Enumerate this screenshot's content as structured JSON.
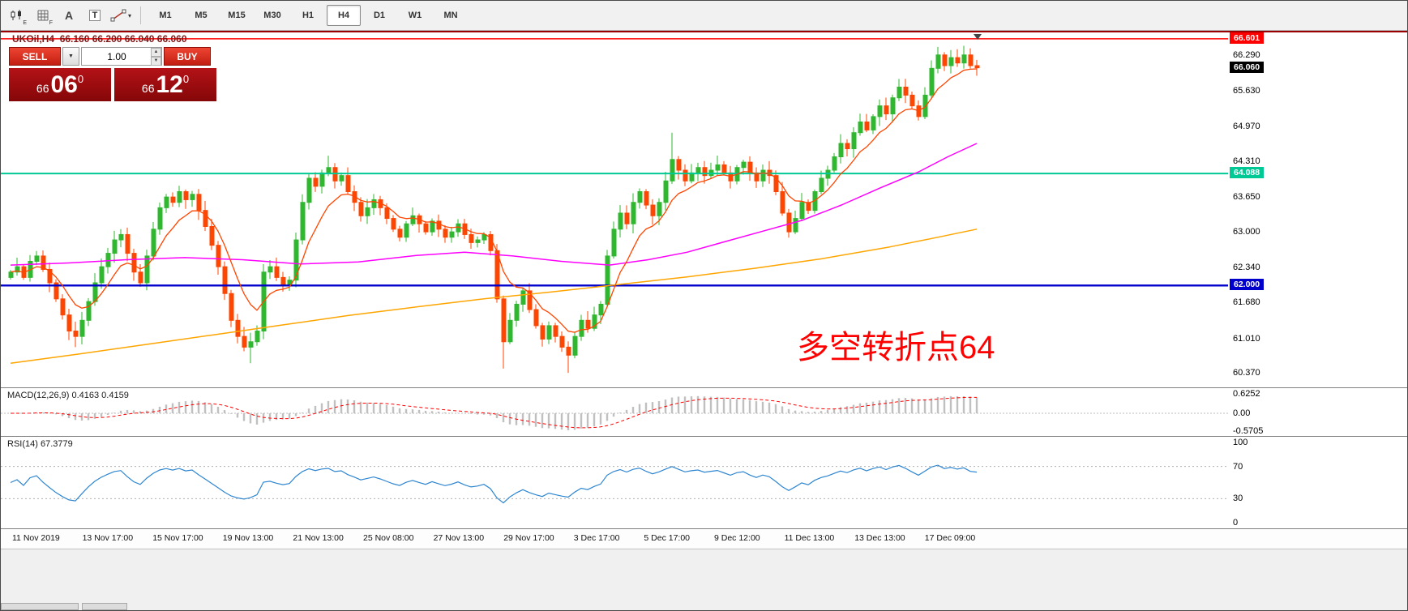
{
  "toolbar": {
    "tools": [
      {
        "name": "chart-window-icon",
        "sub": "E"
      },
      {
        "name": "indicator-grid-icon",
        "sub": "F"
      },
      {
        "name": "text-label-icon",
        "label": "A"
      },
      {
        "name": "text-template-icon",
        "label": "T"
      },
      {
        "name": "line-studies-icon",
        "caret": "▾"
      }
    ],
    "timeframes": [
      {
        "label": "M1",
        "active": false
      },
      {
        "label": "M5",
        "active": false
      },
      {
        "label": "M15",
        "active": false
      },
      {
        "label": "M30",
        "active": false
      },
      {
        "label": "H1",
        "active": false
      },
      {
        "label": "H4",
        "active": true
      },
      {
        "label": "D1",
        "active": false
      },
      {
        "label": "W1",
        "active": false
      },
      {
        "label": "MN",
        "active": false
      }
    ]
  },
  "chart": {
    "symbol": "UKOil,H4",
    "ohlc": "66.160 66.200 66.040 66.060",
    "trade_panel": {
      "sell_label": "SELL",
      "buy_label": "BUY",
      "volume": "1.00",
      "bid": {
        "prefix": "66",
        "big": "06",
        "sup": "0"
      },
      "ask": {
        "prefix": "66",
        "big": "12",
        "sup": "0"
      },
      "icons": {
        "dropdown": "▼",
        "spin_up": "▲",
        "spin_down": "▼"
      }
    },
    "annotation": {
      "text": "多空转折点64",
      "color": "#ff0000"
    }
  },
  "chart_data": {
    "type": "candlestick",
    "symbol": "UKOil",
    "timeframe": "H4",
    "title": "UKOil,H4 66.160 66.200 66.040 66.060",
    "colors": {
      "bull": "#2eb82e",
      "bear": "#ff4500",
      "ma_fast": "#ff4500",
      "ma_mid": "#ff00ff",
      "ma_slow": "#ffa500"
    },
    "price_axis": {
      "min": 60.1,
      "max": 66.72,
      "labels": [
        "66.290",
        "65.630",
        "64.970",
        "64.310",
        "63.650",
        "63.000",
        "62.340",
        "61.680",
        "61.010",
        "60.370"
      ]
    },
    "hlines": [
      {
        "price": 66.601,
        "label": "66.601",
        "color": "#ff0000",
        "width": 1.6
      },
      {
        "price": 64.088,
        "label": "64.088",
        "color": "#00c996",
        "width": 2.0
      },
      {
        "price": 62.0,
        "label": "62.000",
        "color": "#0000cc",
        "width": 2.4
      }
    ],
    "current_price": {
      "price": 66.06,
      "label": "66.060",
      "badge_color": "#000000"
    },
    "closes": [
      62.25,
      62.35,
      62.15,
      62.45,
      62.55,
      62.3,
      62.05,
      61.75,
      61.45,
      61.15,
      61.05,
      61.35,
      61.7,
      62.05,
      62.35,
      62.6,
      62.85,
      62.95,
      62.6,
      62.25,
      62.05,
      62.55,
      63.05,
      63.45,
      63.65,
      63.55,
      63.75,
      63.6,
      63.7,
      63.4,
      63.1,
      62.75,
      62.35,
      61.85,
      61.35,
      61.05,
      60.85,
      60.95,
      61.15,
      62.25,
      62.35,
      62.15,
      62.0,
      62.1,
      62.85,
      63.55,
      64.0,
      63.85,
      64.1,
      64.2,
      63.95,
      64.05,
      63.75,
      63.55,
      63.3,
      63.45,
      63.6,
      63.45,
      63.25,
      63.05,
      62.9,
      63.15,
      63.3,
      63.15,
      63.0,
      63.2,
      63.05,
      62.9,
      63.0,
      63.15,
      62.95,
      62.8,
      62.85,
      62.95,
      62.65,
      61.75,
      60.95,
      61.35,
      61.65,
      61.9,
      61.55,
      61.25,
      61.0,
      61.25,
      61.05,
      60.85,
      60.7,
      61.05,
      61.35,
      61.2,
      61.45,
      61.65,
      62.55,
      63.05,
      63.35,
      63.15,
      63.55,
      63.75,
      63.5,
      63.3,
      63.55,
      63.95,
      64.35,
      64.15,
      63.95,
      64.1,
      64.2,
      64.05,
      64.15,
      64.25,
      64.1,
      63.95,
      64.2,
      64.3,
      64.1,
      63.95,
      64.15,
      64.05,
      63.75,
      63.35,
      63.0,
      63.25,
      63.55,
      63.4,
      63.75,
      64.0,
      64.15,
      64.4,
      64.65,
      64.55,
      64.85,
      65.05,
      64.9,
      65.15,
      65.35,
      65.2,
      65.5,
      65.7,
      65.55,
      65.35,
      65.15,
      65.55,
      66.05,
      66.3,
      66.1,
      66.25,
      66.15,
      66.3,
      66.1,
      66.06
    ],
    "wick_overrides": {
      "10": {
        "low": 60.85
      },
      "37": {
        "low": 60.55
      },
      "49": {
        "high": 64.42
      },
      "76": {
        "low": 60.45
      },
      "86": {
        "low": 60.37
      },
      "102": {
        "high": 64.85
      },
      "143": {
        "high": 66.45
      }
    },
    "ma": {
      "fast": {
        "period": 8
      },
      "mid": {
        "points": [
          [
            0,
            62.38
          ],
          [
            0.06,
            62.42
          ],
          [
            0.12,
            62.48
          ],
          [
            0.18,
            62.52
          ],
          [
            0.24,
            62.48
          ],
          [
            0.3,
            62.4
          ],
          [
            0.36,
            62.44
          ],
          [
            0.42,
            62.56
          ],
          [
            0.47,
            62.62
          ],
          [
            0.52,
            62.55
          ],
          [
            0.57,
            62.45
          ],
          [
            0.62,
            62.38
          ],
          [
            0.66,
            62.48
          ],
          [
            0.7,
            62.62
          ],
          [
            0.74,
            62.82
          ],
          [
            0.78,
            63.02
          ],
          [
            0.82,
            63.22
          ],
          [
            0.86,
            63.5
          ],
          [
            0.9,
            63.82
          ],
          [
            0.94,
            64.12
          ],
          [
            0.97,
            64.4
          ],
          [
            1,
            64.65
          ]
        ]
      },
      "slow": {
        "points": [
          [
            0,
            60.55
          ],
          [
            0.07,
            60.72
          ],
          [
            0.14,
            60.9
          ],
          [
            0.21,
            61.08
          ],
          [
            0.28,
            61.26
          ],
          [
            0.35,
            61.44
          ],
          [
            0.42,
            61.6
          ],
          [
            0.49,
            61.75
          ],
          [
            0.56,
            61.88
          ],
          [
            0.63,
            62.02
          ],
          [
            0.7,
            62.16
          ],
          [
            0.77,
            62.32
          ],
          [
            0.84,
            62.5
          ],
          [
            0.91,
            62.72
          ],
          [
            0.96,
            62.9
          ],
          [
            1,
            63.05
          ]
        ]
      }
    },
    "macd": {
      "label": "MACD(12,26,9) 0.4163 0.4159",
      "params": [
        12,
        26,
        9
      ],
      "values": [
        0.4163,
        0.4159
      ],
      "axis": [
        "0.6252",
        "0.00",
        "-0.5705"
      ],
      "axis_values": [
        0.6252,
        0.0,
        -0.5705
      ],
      "range": [
        -0.74,
        0.82
      ],
      "hist_color": "#c0c0c0",
      "signal_color": "#ff0000"
    },
    "rsi": {
      "label": "RSI(14) 67.3779",
      "period": 14,
      "value": 67.3779,
      "axis": [
        "100",
        "70",
        "30",
        "0"
      ],
      "axis_values": [
        100,
        70,
        30,
        0
      ],
      "levels": [
        70,
        30
      ],
      "color": "#2e86d0"
    },
    "x_axis": [
      "11 Nov 2019",
      "13 Nov 17:00",
      "15 Nov 17:00",
      "19 Nov 13:00",
      "21 Nov 13:00",
      "25 Nov 08:00",
      "27 Nov 13:00",
      "29 Nov 17:00",
      "3 Dec 17:00",
      "5 Dec 17:00",
      "9 Dec 12:00",
      "11 Dec 13:00",
      "13 Dec 13:00",
      "17 Dec 09:00"
    ]
  }
}
